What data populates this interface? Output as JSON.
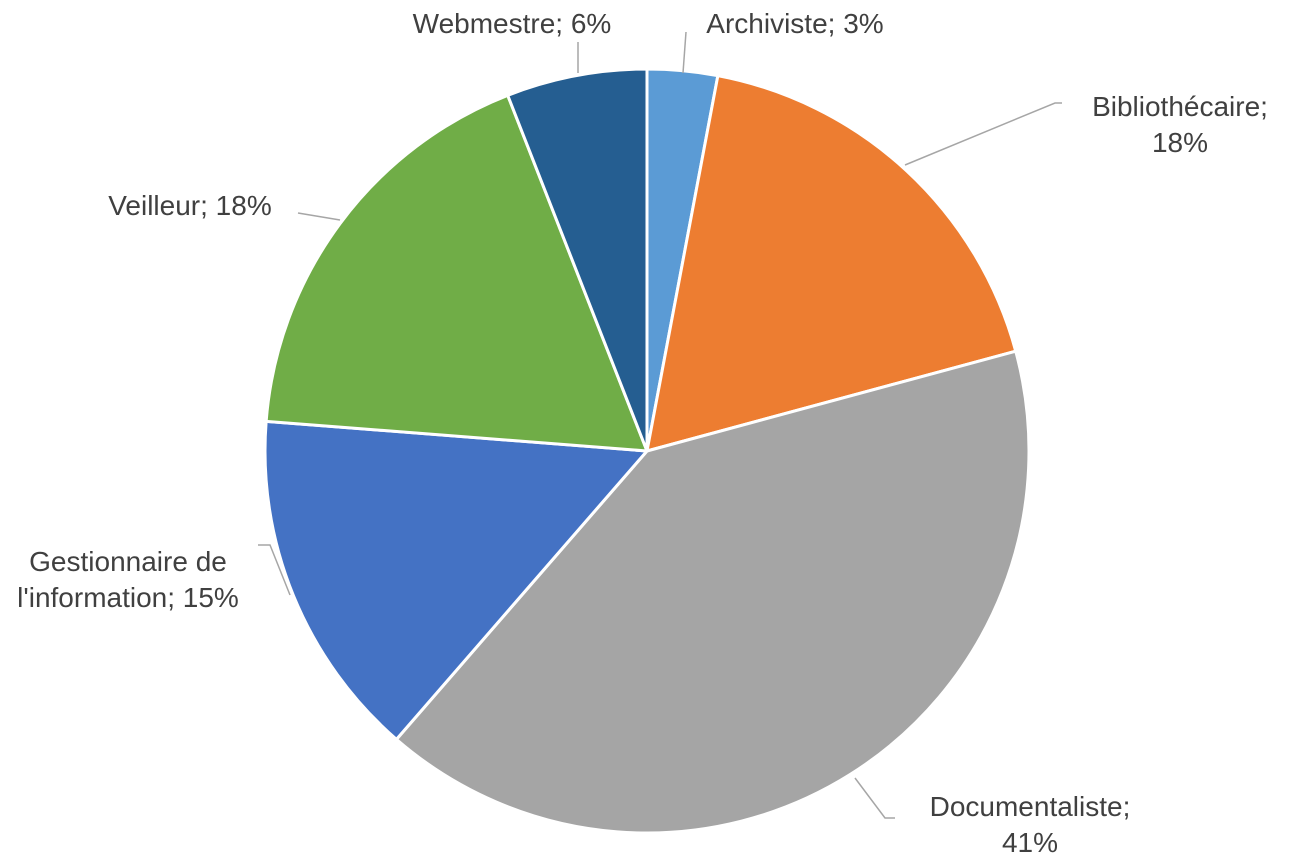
{
  "chart_data": {
    "type": "pie",
    "values": [
      3,
      18,
      41,
      15,
      18,
      6
    ],
    "value_labels": [
      "Archiviste; 3%",
      "Bibliothécaire; 18%",
      "Documentaliste; 41%",
      "Gestionnaire de l'information; 15%",
      "Veilleur; 18%",
      "Webmestre; 6%"
    ],
    "colors": [
      "#5b9bd5",
      "#ed7d31",
      "#a5a5a5",
      "#4472c4",
      "#70ad47",
      "#255e91"
    ]
  }
}
